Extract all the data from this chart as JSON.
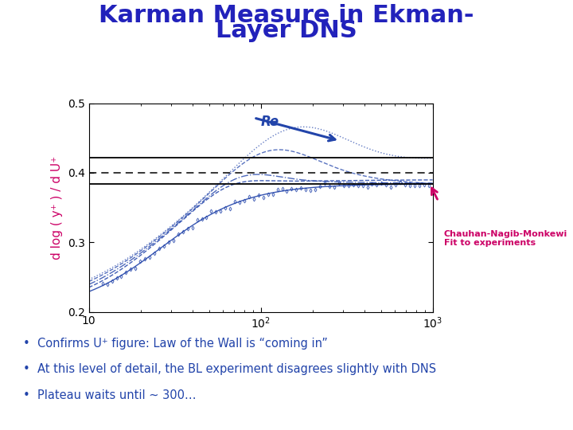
{
  "title_line1": "Karman Measure in Ekman-",
  "title_line2": "Layer DNS",
  "title_color": "#2222bb",
  "title_fontsize": 22,
  "ylabel": "d log ( y⁺ ) / d U⁺",
  "ylabel_color": "#cc0066",
  "ylabel_fontsize": 11,
  "xmin": 10,
  "xmax": 1000,
  "ymin": 0.2,
  "ymax": 0.5,
  "hline_upper": 0.422,
  "hline_lower": 0.384,
  "hline_dashed": 0.4,
  "line_color": "#2244aa",
  "annotation_text": "Chauhan-Nagib-Monkewi\nFit to experiments",
  "annotation_color": "#cc0066",
  "re_label": "Re",
  "re_color": "#2244aa",
  "bullet_color": "#2244aa",
  "bullet_fontsize": 10.5,
  "bullets": [
    "Confirms U⁺ figure: Law of the Wall is “coming in”",
    "At this level of detail, the BL experiment disagrees slightly with DNS",
    "Plateau waits until ~ 300…"
  ]
}
